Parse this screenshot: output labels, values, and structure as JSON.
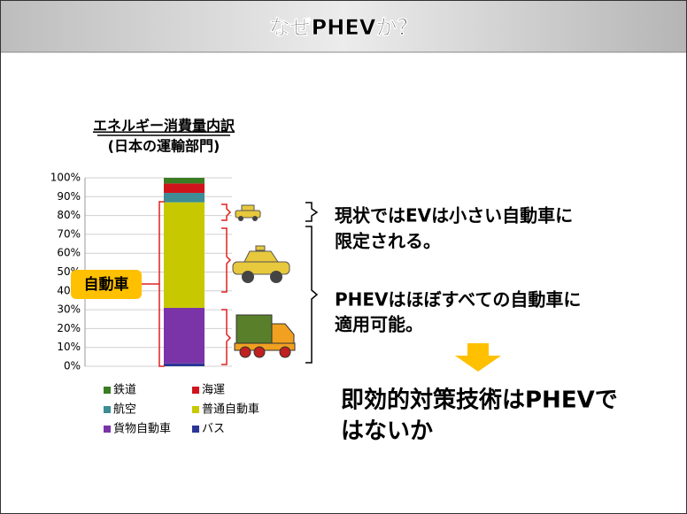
{
  "title": "なぜPHEVか？",
  "callout": "自動車",
  "statements": [
    [
      "現状ではEVは小さい自動車に",
      "限定される。"
    ],
    [
      "PHEVはほぼすべての自動車に",
      "適用可能。"
    ]
  ],
  "conclusion": [
    "即効的対策技術はPHEVで",
    "はないか"
  ],
  "chart_data": {
    "type": "stacked_bar",
    "title": "エネルギー消費量内訳",
    "subtitle": "(日本の運輸部門)",
    "categories": [
      null
    ],
    "series": [
      {
        "name": "鉄道",
        "color": "#3a7d22",
        "values": [
          3
        ]
      },
      {
        "name": "海運",
        "color": "#d0141c",
        "values": [
          5
        ]
      },
      {
        "name": "航空",
        "color": "#3d8c96",
        "values": [
          5
        ]
      },
      {
        "name": "普通自動車",
        "color": "#c8c800",
        "values": [
          56
        ]
      },
      {
        "name": "貨物自動車",
        "color": "#7a34a8",
        "values": [
          29.5
        ]
      },
      {
        "name": "バス",
        "color": "#2a3596",
        "values": [
          1.5
        ]
      }
    ],
    "ylim": [
      0,
      100
    ],
    "yticks": [
      {
        "value": 0,
        "label": "0%"
      },
      {
        "value": 10,
        "label": "10%"
      },
      {
        "value": 20,
        "label": "20%"
      },
      {
        "value": 30,
        "label": "30%"
      },
      {
        "value": 40,
        "label": "40%"
      },
      {
        "value": 50,
        "label": "50%"
      },
      {
        "value": 60,
        "label": "60%"
      },
      {
        "value": 70,
        "label": "70%"
      },
      {
        "value": 80,
        "label": "80%"
      },
      {
        "value": 90,
        "label": "90%"
      },
      {
        "value": 100,
        "label": "100%"
      }
    ],
    "grid": true
  }
}
